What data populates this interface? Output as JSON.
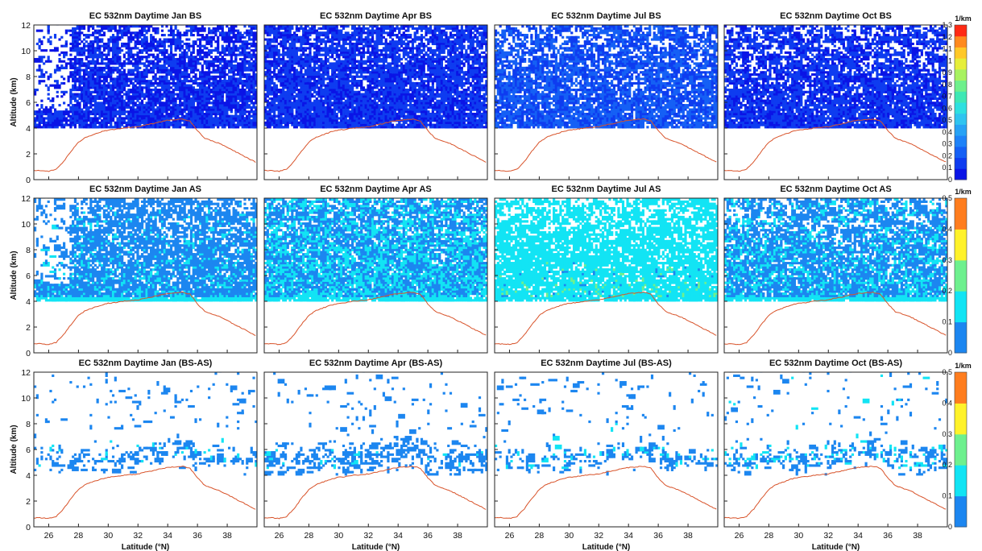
{
  "chart_data": {
    "type": "heatmap",
    "description_rows": [
      "BS",
      "AS",
      "BS-AS"
    ],
    "months": [
      "Jan",
      "Apr",
      "Jul",
      "Oct"
    ],
    "xlabel": "Latitude (°N)",
    "ylabel": "Altitude (km)",
    "xlim": [
      25,
      40
    ],
    "ylim": [
      0,
      12
    ],
    "xticks": [
      26,
      28,
      30,
      32,
      34,
      36,
      38
    ],
    "yticks": [
      0,
      2,
      4,
      6,
      8,
      10,
      12
    ],
    "titles": [
      [
        "EC 532nm Daytime Jan BS",
        "EC 532nm Daytime Apr BS",
        "EC 532nm Daytime Jul BS",
        "EC 532nm Daytime Oct BS"
      ],
      [
        "EC 532nm Daytime Jan AS",
        "EC 532nm Daytime Apr AS",
        "EC 532nm Daytime Jul AS",
        "EC 532nm Daytime Oct AS"
      ],
      [
        "EC 532nm Daytime Jan (BS-AS)",
        "EC 532nm Daytime Apr (BS-AS)",
        "EC 532nm Daytime Jul (BS-AS)",
        "EC 532nm Daytime Oct (BS-AS)"
      ]
    ],
    "data_bottom_km": 4.0,
    "colorbars": [
      {
        "unit": "1/km",
        "min": 0,
        "max": 1.3,
        "ticks": [
          "0",
          "0.1",
          "0.2",
          "0.3",
          "0.4",
          "0.5",
          "0.6",
          "0.7",
          "0.8",
          "0.9",
          "1",
          "1.1",
          "1.2",
          "1.3"
        ],
        "colors": [
          "#0a14e6",
          "#0e3cf0",
          "#1560f5",
          "#1e82f8",
          "#27a2f5",
          "#2fc4f0",
          "#2ee0e0",
          "#3ee8b4",
          "#6ef08c",
          "#a8f260",
          "#e6ee3a",
          "#ffc828",
          "#ff8a1e",
          "#ff2a14"
        ]
      },
      {
        "unit": "1/km",
        "min": 0,
        "max": 0.5,
        "ticks": [
          "0",
          "0.1",
          "0.2",
          "0.3",
          "0.4",
          "0.5"
        ],
        "colors": [
          "#1c86f0",
          "#12e4f4",
          "#6ef08e",
          "#fff22a",
          "#ff7d1e"
        ]
      },
      {
        "unit": "1/km",
        "min": 0,
        "max": 0.5,
        "ticks": [
          "0",
          "0.1",
          "0.2",
          "0.3",
          "0.4",
          "0.5"
        ],
        "colors": [
          "#1c86f0",
          "#12e4f4",
          "#6ef08e",
          "#fff22a",
          "#ff7d1e"
        ]
      }
    ],
    "terrain": {
      "name": "surface elevation",
      "color": "#d8532a",
      "latitude": [
        25.0,
        25.5,
        26.0,
        26.5,
        27.0,
        27.5,
        28.0,
        28.5,
        29.0,
        29.5,
        30.0,
        30.5,
        31.0,
        31.5,
        32.0,
        32.5,
        33.0,
        33.5,
        34.0,
        34.5,
        35.0,
        35.5,
        36.0,
        36.5,
        37.0,
        37.5,
        38.0,
        38.5,
        39.0,
        39.5,
        40.0
      ],
      "altitude": [
        0.7,
        0.7,
        0.65,
        0.8,
        1.4,
        2.2,
        2.9,
        3.3,
        3.5,
        3.7,
        3.85,
        3.9,
        4.0,
        4.05,
        4.1,
        4.25,
        4.35,
        4.5,
        4.6,
        4.65,
        4.7,
        4.55,
        3.8,
        3.2,
        3.0,
        2.8,
        2.5,
        2.2,
        1.9,
        1.6,
        1.3
      ]
    },
    "layers": [
      {
        "row": 0,
        "col": 0,
        "base": 0.08,
        "spread": 0.07,
        "gapHi": 0.55,
        "gapLo": 0.12,
        "clearLat": 27.3
      },
      {
        "row": 0,
        "col": 1,
        "base": 0.09,
        "spread": 0.08,
        "gapHi": 0.45,
        "gapLo": 0.1,
        "clearLat": 0
      },
      {
        "row": 0,
        "col": 2,
        "base": 0.17,
        "spread": 0.12,
        "gapHi": 0.6,
        "gapLo": 0.15,
        "clearLat": 0
      },
      {
        "row": 0,
        "col": 3,
        "base": 0.09,
        "spread": 0.08,
        "gapHi": 0.6,
        "gapLo": 0.15,
        "clearLat": 0
      },
      {
        "row": 1,
        "col": 0,
        "base": 0.07,
        "spread": 0.06,
        "gapHi": 0.55,
        "gapLo": 0.12,
        "clearLat": 27.3
      },
      {
        "row": 1,
        "col": 1,
        "base": 0.085,
        "spread": 0.07,
        "gapHi": 0.45,
        "gapLo": 0.1,
        "clearLat": 0
      },
      {
        "row": 1,
        "col": 2,
        "base": 0.13,
        "spread": 0.1,
        "gapHi": 0.6,
        "gapLo": 0.15,
        "clearLat": 0
      },
      {
        "row": 1,
        "col": 3,
        "base": 0.075,
        "spread": 0.07,
        "gapHi": 0.6,
        "gapLo": 0.15,
        "clearLat": 0
      },
      {
        "row": 2,
        "col": 0,
        "base": 0.06,
        "spread": 0.06,
        "gapHi": 0.97,
        "gapLo": 0.7,
        "clearLat": 28.5
      },
      {
        "row": 2,
        "col": 1,
        "base": 0.06,
        "spread": 0.06,
        "gapHi": 0.97,
        "gapLo": 0.6,
        "clearLat": 0
      },
      {
        "row": 2,
        "col": 2,
        "base": 0.06,
        "spread": 0.07,
        "gapHi": 0.97,
        "gapLo": 0.7,
        "clearLat": 28.5
      },
      {
        "row": 2,
        "col": 3,
        "base": 0.07,
        "spread": 0.07,
        "gapHi": 0.97,
        "gapLo": 0.65,
        "clearLat": 0
      }
    ]
  }
}
